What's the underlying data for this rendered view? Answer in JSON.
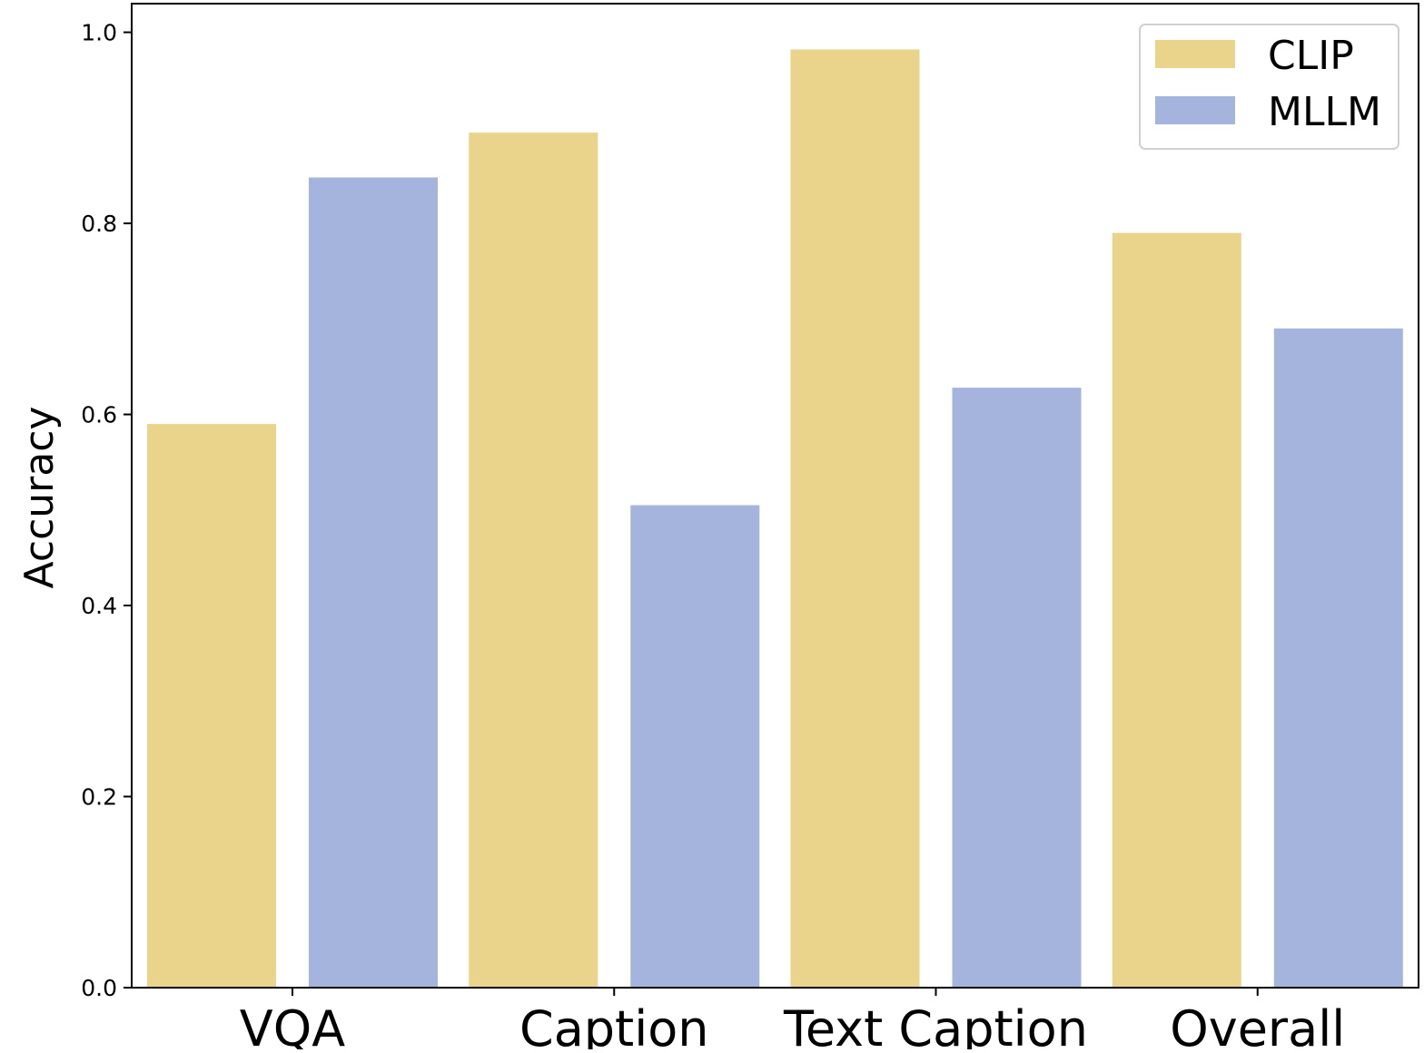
{
  "chart_data": {
    "type": "bar",
    "title": "",
    "xlabel": "",
    "ylabel": "Accuracy",
    "categories": [
      "VQA",
      "Caption",
      "Text Caption",
      "Overall"
    ],
    "series": [
      {
        "name": "CLIP",
        "color": "#ead38a",
        "values": [
          0.59,
          0.895,
          0.982,
          0.79
        ]
      },
      {
        "name": "MLLM",
        "color": "#a5b4dd",
        "values": [
          0.848,
          0.505,
          0.628,
          0.69
        ]
      }
    ],
    "ylim": [
      0.0,
      1.03
    ],
    "yticks": [
      0.0,
      0.2,
      0.4,
      0.6,
      0.8,
      1.0
    ],
    "ytick_labels": [
      "0.0",
      "0.2",
      "0.4",
      "0.6",
      "0.8",
      "1.0"
    ],
    "grid": false,
    "legend_position": "top-right"
  }
}
